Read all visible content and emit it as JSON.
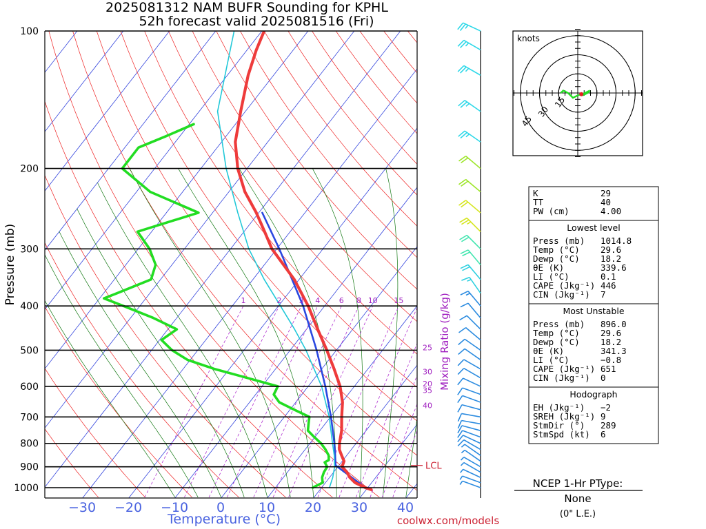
{
  "title_line1": "2025081312 NAM BUFR Sounding for KPHL",
  "title_line2": "52h forecast valid 2025081516 (Fri)",
  "footer_url": "coolwx.com/models",
  "colors": {
    "temperature": "#ee3b3b",
    "dewpoint": "#22dd22",
    "wetbulb": "#22c8d8",
    "parcel": "#2a48e0",
    "isotherm": "#3344dd",
    "dry_adiabat": "#ee2222",
    "moist_adiabat": "#117711",
    "mixing_ratio": "#b030d0",
    "axis_label": "#4a63e0",
    "mixing_label": "#a020c0"
  },
  "chart_data": {
    "type": "skew-t",
    "xlabel": "Temperature (°C)",
    "ylabel": "Pressure (mb)",
    "mixing_label": "Mixing Ratio (g/kg)",
    "pressure_range": [
      1050,
      100
    ],
    "temperature_range": [
      -39,
      42
    ],
    "temperature_ticks": [
      "−30",
      "−20",
      "−10",
      "0",
      "10",
      "20",
      "30",
      "40"
    ],
    "temperature_tick_values": [
      -30,
      -20,
      -10,
      0,
      10,
      20,
      30,
      40
    ],
    "pressure_ticks": [
      "100",
      "200",
      "300",
      "400",
      "500",
      "600",
      "700",
      "800",
      "900",
      "1000"
    ],
    "pressure_tick_values": [
      100,
      200,
      300,
      400,
      500,
      600,
      700,
      800,
      900,
      1000
    ],
    "mixing_ratio_labels": [
      "1",
      "2",
      "3",
      "4",
      "6",
      "8",
      "10",
      "15",
      "20",
      "25",
      "30",
      "35",
      "40"
    ],
    "lcl_label": "LCL",
    "lcl_pressure": 894,
    "temperature_profile": [
      [
        1010,
        31.2
      ],
      [
        1000,
        29.6
      ],
      [
        975,
        26.5
      ],
      [
        950,
        24.5
      ],
      [
        925,
        23.0
      ],
      [
        900,
        21.0
      ],
      [
        875,
        20.5
      ],
      [
        850,
        19.0
      ],
      [
        825,
        17.5
      ],
      [
        800,
        16.5
      ],
      [
        750,
        14.8
      ],
      [
        700,
        12.5
      ],
      [
        650,
        10.2
      ],
      [
        600,
        7.0
      ],
      [
        550,
        2.8
      ],
      [
        500,
        -2.0
      ],
      [
        450,
        -7.5
      ],
      [
        400,
        -13.5
      ],
      [
        350,
        -21.0
      ],
      [
        300,
        -31.0
      ],
      [
        275,
        -35.5
      ],
      [
        250,
        -40.5
      ],
      [
        225,
        -46.5
      ],
      [
        200,
        -52.0
      ],
      [
        175,
        -57.0
      ],
      [
        150,
        -61.0
      ],
      [
        125,
        -65.5
      ],
      [
        110,
        -68.0
      ],
      [
        100,
        -69.5
      ]
    ],
    "dewpoint_profile": [
      [
        1000,
        18.2
      ],
      [
        975,
        19.5
      ],
      [
        950,
        18.5
      ],
      [
        925,
        18.0
      ],
      [
        900,
        17.8
      ],
      [
        880,
        16.5
      ],
      [
        870,
        17.0
      ],
      [
        850,
        16.2
      ],
      [
        825,
        14.5
      ],
      [
        800,
        12.5
      ],
      [
        775,
        10.0
      ],
      [
        750,
        7.5
      ],
      [
        725,
        6.5
      ],
      [
        700,
        5.5
      ],
      [
        675,
        1.0
      ],
      [
        650,
        -3.5
      ],
      [
        625,
        -6.0
      ],
      [
        600,
        -6.5
      ],
      [
        575,
        -14.5
      ],
      [
        550,
        -23.0
      ],
      [
        525,
        -30.5
      ],
      [
        500,
        -35.5
      ],
      [
        475,
        -39.5
      ],
      [
        450,
        -38.0
      ],
      [
        425,
        -45.0
      ],
      [
        400,
        -53.5
      ],
      [
        385,
        -59.0
      ],
      [
        375,
        -57.0
      ],
      [
        350,
        -52.0
      ],
      [
        325,
        -53.5
      ],
      [
        300,
        -57.5
      ],
      [
        275,
        -63.0
      ],
      [
        250,
        -53.0
      ],
      [
        225,
        -67.0
      ],
      [
        200,
        -77.0
      ],
      [
        180,
        -77.0
      ],
      [
        170,
        -73.0
      ],
      [
        160,
        -69.0
      ]
    ],
    "wetbulb_profile": [
      [
        1000,
        21.8
      ],
      [
        950,
        20.8
      ],
      [
        900,
        19.4
      ],
      [
        850,
        17.4
      ],
      [
        800,
        15.0
      ],
      [
        700,
        9.8
      ],
      [
        600,
        3.0
      ],
      [
        500,
        -6.5
      ],
      [
        450,
        -12.5
      ],
      [
        400,
        -19.5
      ],
      [
        350,
        -27.5
      ],
      [
        300,
        -36.0
      ],
      [
        250,
        -44.5
      ],
      [
        200,
        -54.5
      ],
      [
        150,
        -66.0
      ],
      [
        100,
        -76.0
      ]
    ],
    "parcel_profile": [
      [
        1000,
        29.6
      ],
      [
        894,
        19.4
      ],
      [
        850,
        17.6
      ],
      [
        800,
        15.4
      ],
      [
        700,
        10.2
      ],
      [
        600,
        3.8
      ],
      [
        500,
        -4.2
      ],
      [
        400,
        -14.6
      ],
      [
        300,
        -29.4
      ],
      [
        250,
        -39.2
      ]
    ],
    "wind_profile": [
      {
        "p": 1000,
        "spd": 5,
        "dir": 290
      },
      {
        "p": 975,
        "spd": 6,
        "dir": 290
      },
      {
        "p": 950,
        "spd": 6,
        "dir": 295
      },
      {
        "p": 925,
        "spd": 5,
        "dir": 300
      },
      {
        "p": 900,
        "spd": 5,
        "dir": 300
      },
      {
        "p": 875,
        "spd": 6,
        "dir": 305
      },
      {
        "p": 850,
        "spd": 7,
        "dir": 305
      },
      {
        "p": 825,
        "spd": 8,
        "dir": 300
      },
      {
        "p": 800,
        "spd": 9,
        "dir": 295
      },
      {
        "p": 775,
        "spd": 10,
        "dir": 290
      },
      {
        "p": 750,
        "spd": 10,
        "dir": 285
      },
      {
        "p": 725,
        "spd": 10,
        "dir": 280
      },
      {
        "p": 700,
        "spd": 10,
        "dir": 280
      },
      {
        "p": 675,
        "spd": 10,
        "dir": 285
      },
      {
        "p": 650,
        "spd": 10,
        "dir": 290
      },
      {
        "p": 625,
        "spd": 10,
        "dir": 290
      },
      {
        "p": 600,
        "spd": 10,
        "dir": 295
      },
      {
        "p": 575,
        "spd": 10,
        "dir": 300
      },
      {
        "p": 550,
        "spd": 10,
        "dir": 300
      },
      {
        "p": 525,
        "spd": 10,
        "dir": 305
      },
      {
        "p": 500,
        "spd": 10,
        "dir": 305
      },
      {
        "p": 475,
        "spd": 10,
        "dir": 310
      },
      {
        "p": 450,
        "spd": 10,
        "dir": 315
      },
      {
        "p": 425,
        "spd": 10,
        "dir": 320
      },
      {
        "p": 400,
        "spd": 15,
        "dir": 320
      },
      {
        "p": 375,
        "spd": 15,
        "dir": 325
      },
      {
        "p": 350,
        "spd": 20,
        "dir": 320
      },
      {
        "p": 325,
        "spd": 20,
        "dir": 320
      },
      {
        "p": 300,
        "spd": 20,
        "dir": 315
      },
      {
        "p": 275,
        "spd": 25,
        "dir": 315
      },
      {
        "p": 250,
        "spd": 20,
        "dir": 310
      },
      {
        "p": 225,
        "spd": 20,
        "dir": 310
      },
      {
        "p": 200,
        "spd": 20,
        "dir": 310
      },
      {
        "p": 175,
        "spd": 25,
        "dir": 305
      },
      {
        "p": 150,
        "spd": 25,
        "dir": 305
      },
      {
        "p": 125,
        "spd": 25,
        "dir": 300
      },
      {
        "p": 110,
        "spd": 25,
        "dir": 300
      },
      {
        "p": 100,
        "spd": 25,
        "dir": 295
      }
    ],
    "hodograph": {
      "label": "knots",
      "ring_labels": [
        "15",
        "30",
        "45"
      ],
      "ring_values": [
        15,
        30,
        45
      ],
      "points": [
        [
          2,
          -1
        ],
        [
          4,
          0
        ],
        [
          5,
          1
        ],
        [
          3,
          0
        ],
        [
          0,
          -1
        ],
        [
          -2,
          -2
        ],
        [
          -3,
          -1
        ],
        [
          -4,
          0
        ],
        [
          -6,
          1
        ],
        [
          -7,
          0
        ]
      ],
      "storm_motion_dir": 289,
      "storm_motion_speed": 6
    },
    "indices": {
      "top": [
        {
          "label": "K",
          "value": "29"
        },
        {
          "label": "TT",
          "value": "40"
        },
        {
          "label": "PW (cm)",
          "value": "4.00"
        }
      ],
      "lowest_header": "Lowest level",
      "lowest": [
        {
          "label": "Press (mb)",
          "value": "1014.8"
        },
        {
          "label": "Temp (°C)",
          "value": "29.6"
        },
        {
          "label": "Dewp (°C)",
          "value": "18.2"
        },
        {
          "label": "θE (K)",
          "value": "339.6"
        },
        {
          "label": "LI (°C)",
          "value": "0.1"
        },
        {
          "label": "CAPE (Jkg⁻¹)",
          "value": "446"
        },
        {
          "label": "CIN (Jkg⁻¹)",
          "value": "7"
        }
      ],
      "unstable_header": "Most Unstable",
      "unstable": [
        {
          "label": "Press (mb)",
          "value": "896.0"
        },
        {
          "label": "Temp (°C)",
          "value": "29.6"
        },
        {
          "label": "Dewp (°C)",
          "value": "18.2"
        },
        {
          "label": "θE (K)",
          "value": "341.3"
        },
        {
          "label": "LI (°C)",
          "value": "−0.8"
        },
        {
          "label": "CAPE (Jkg⁻¹)",
          "value": "651"
        },
        {
          "label": "CIN (Jkg⁻¹)",
          "value": "0"
        }
      ],
      "hodo_header": "Hodograph",
      "hodo": [
        {
          "label": "EH (Jkg⁻¹)",
          "value": "−2"
        },
        {
          "label": "SREH (Jkg⁻¹)",
          "value": "9"
        },
        {
          "label": "StmDir (°)",
          "value": "289"
        },
        {
          "label": "StmSpd (kt)",
          "value": "6"
        }
      ]
    },
    "ptype": {
      "title": "NCEP 1-Hr PType:",
      "value": "None",
      "note": "(0\" L.E.)"
    }
  }
}
